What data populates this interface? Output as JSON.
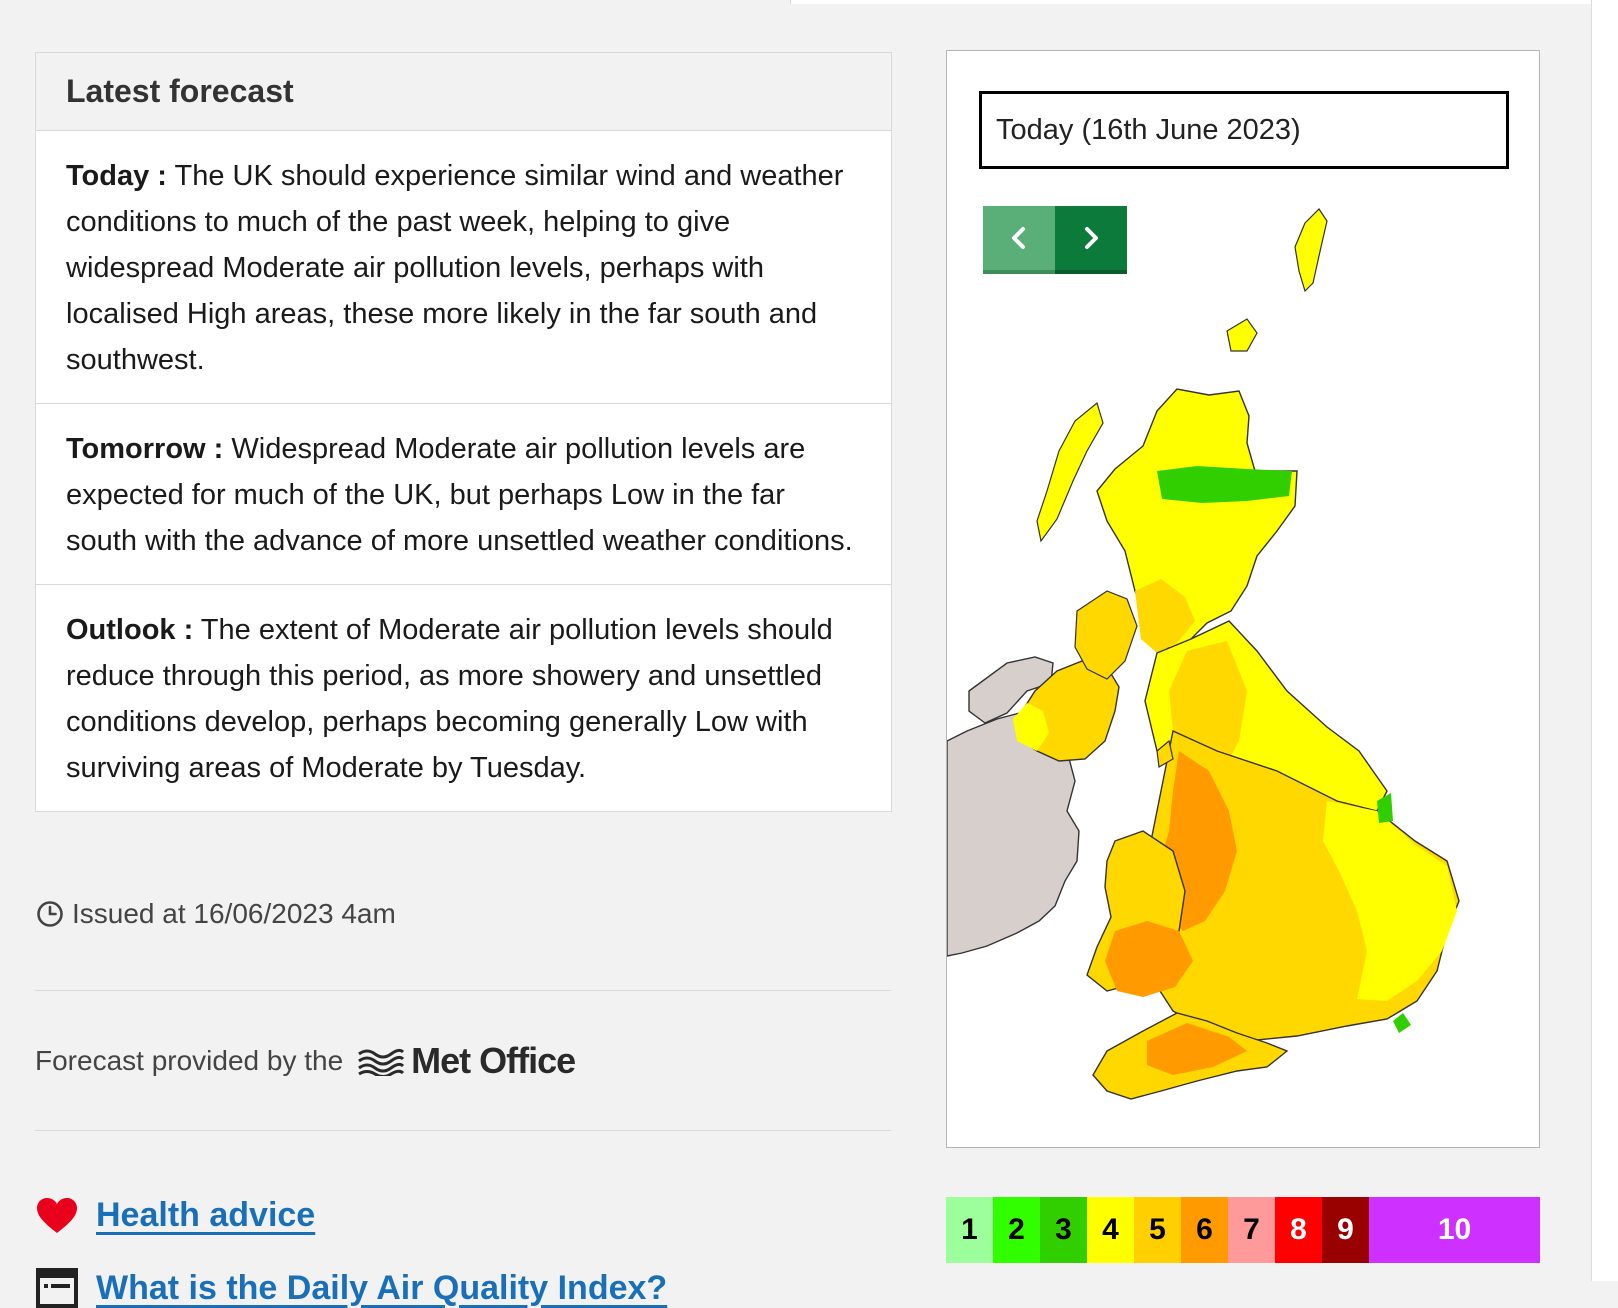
{
  "forecast": {
    "heading": "Latest forecast",
    "items": [
      {
        "label": "Today :",
        "text": " The UK should experience similar wind and weather conditions to much of the past week, helping to give widespread Moderate air pollution levels, perhaps with localised High areas, these more likely in the far south and southwest."
      },
      {
        "label": "Tomorrow :",
        "text": " Widespread Moderate air pollution levels are expected for much of the UK, but perhaps Low in the far south with the advance of more unsettled weather conditions."
      },
      {
        "label": "Outlook :",
        "text": " The extent of Moderate air pollution levels should reduce through this period, as more showery and unsettled conditions develop, perhaps becoming generally Low with surviving areas of Moderate by Tuesday."
      }
    ],
    "issued": "Issued at 16/06/2023 4am",
    "provided_by": "Forecast provided by the",
    "provider_name": "Met Office",
    "provider_icon": "met-office-waves-icon"
  },
  "links": {
    "health_advice": "Health advice",
    "health_icon": "heart-icon",
    "daqi": "What is the Daily Air Quality Index?",
    "daqi_icon": "list-document-icon"
  },
  "map": {
    "date_label": "Today (16th June 2023)",
    "prev_icon": "chevron-left-icon",
    "next_icon": "chevron-right-icon"
  },
  "legend": [
    {
      "label": "1",
      "bg": "#9cff9c",
      "fg": "#000000"
    },
    {
      "label": "2",
      "bg": "#31ff00",
      "fg": "#000000"
    },
    {
      "label": "3",
      "bg": "#31cf00",
      "fg": "#000000"
    },
    {
      "label": "4",
      "bg": "#ffff00",
      "fg": "#000000"
    },
    {
      "label": "5",
      "bg": "#ffcf00",
      "fg": "#000000"
    },
    {
      "label": "6",
      "bg": "#ff9a00",
      "fg": "#000000"
    },
    {
      "label": "7",
      "bg": "#ff9a9a",
      "fg": "#000000"
    },
    {
      "label": "8",
      "bg": "#ff0000",
      "fg": "#ffffff"
    },
    {
      "label": "9",
      "bg": "#990000",
      "fg": "#ffffff"
    },
    {
      "label": "10",
      "bg": "#ce30ff",
      "fg": "#ffffff"
    }
  ]
}
